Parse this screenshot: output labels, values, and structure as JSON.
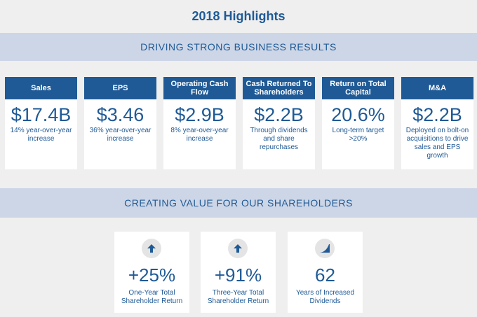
{
  "title": "2018 Highlights",
  "section1": {
    "label": "DRIVING STRONG BUSINESS RESULTS"
  },
  "section2": {
    "label": "CREATING VALUE FOR OUR SHAREHOLDERS"
  },
  "cards": [
    {
      "header": "Sales",
      "value": "$17.4B",
      "desc": "14% year-over-year increase"
    },
    {
      "header": "EPS",
      "value": "$3.46",
      "desc": "36% year-over-year increase"
    },
    {
      "header": "Operating Cash Flow",
      "value": "$2.9B",
      "desc": "8% year-over-year increase"
    },
    {
      "header": "Cash Returned To Shareholders",
      "value": "$2.2B",
      "desc": "Through dividends and share repurchases"
    },
    {
      "header": "Return on Total Capital",
      "value": "20.6%",
      "desc": "Long-term target >20%"
    },
    {
      "header": "M&A",
      "value": "$2.2B",
      "desc": "Deployed on bolt-on acquisitions to drive sales and EPS growth"
    }
  ],
  "stats": [
    {
      "icon": "arrow-up-icon",
      "value": "+25%",
      "desc": "One-Year Total Shareholder Return"
    },
    {
      "icon": "arrow-up-icon",
      "value": "+91%",
      "desc": "Three-Year Total Shareholder Return"
    },
    {
      "icon": "growth-curve-icon",
      "value": "62",
      "desc": "Years of Increased Dividends"
    }
  ],
  "colors": {
    "primary": "#1f5a96",
    "band": "#cdd6e7",
    "background": "#efefef",
    "card": "#ffffff",
    "icon_bg": "#e4e4e4"
  }
}
